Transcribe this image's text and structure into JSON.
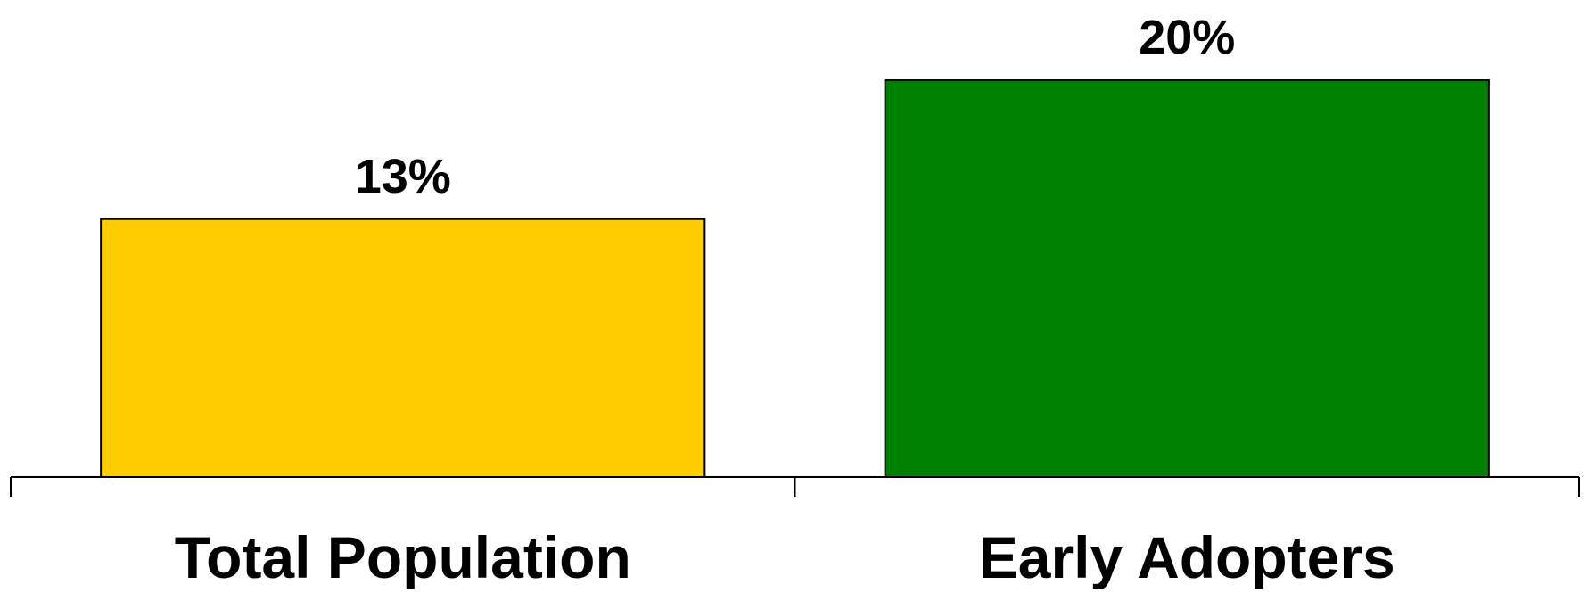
{
  "chart_data": {
    "type": "bar",
    "categories": [
      "Total Population",
      "Early Adopters"
    ],
    "values": [
      13,
      20
    ],
    "data_labels": [
      "13%",
      "20%"
    ],
    "colors": [
      "#FFCC00",
      "#008000"
    ],
    "title": "",
    "xlabel": "",
    "ylabel": "",
    "ylim": [
      0,
      20
    ],
    "grid": false,
    "legend": "none"
  }
}
